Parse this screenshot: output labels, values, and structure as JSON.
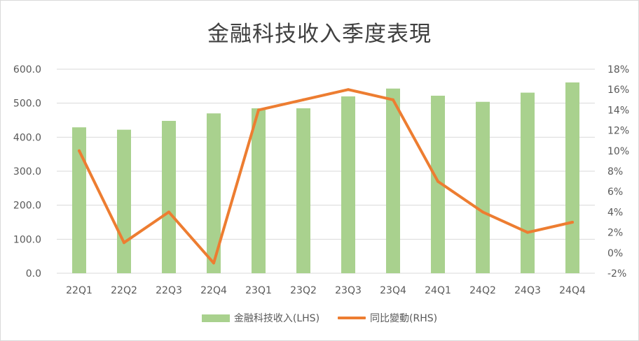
{
  "chart_data": {
    "type": "bar+line",
    "title": "金融科技收入季度表現",
    "categories": [
      "22Q1",
      "22Q2",
      "22Q3",
      "22Q4",
      "23Q1",
      "23Q2",
      "23Q3",
      "23Q4",
      "24Q1",
      "24Q2",
      "24Q3",
      "24Q4"
    ],
    "series": [
      {
        "name": "金融科技收入(LHS)",
        "type": "bar",
        "axis": "left",
        "color": "#a9d18e",
        "values": [
          429,
          422,
          448,
          470,
          485,
          485,
          520,
          543,
          522,
          504,
          531,
          561
        ]
      },
      {
        "name": "同比變動(RHS)",
        "type": "line",
        "axis": "right",
        "color": "#ed7d31",
        "values": [
          10,
          1,
          4,
          -1,
          14,
          15,
          16,
          15,
          7,
          4,
          2,
          3
        ]
      }
    ],
    "y_left": {
      "min": 0,
      "max": 600,
      "ticks": [
        "0.0",
        "100.0",
        "200.0",
        "300.0",
        "400.0",
        "500.0",
        "600.0"
      ]
    },
    "y_right": {
      "min": -2,
      "max": 18,
      "ticks": [
        "-2%",
        "0%",
        "2%",
        "4%",
        "6%",
        "8%",
        "10%",
        "12%",
        "14%",
        "16%",
        "18%"
      ]
    },
    "grid": true,
    "legend_position": "bottom"
  }
}
